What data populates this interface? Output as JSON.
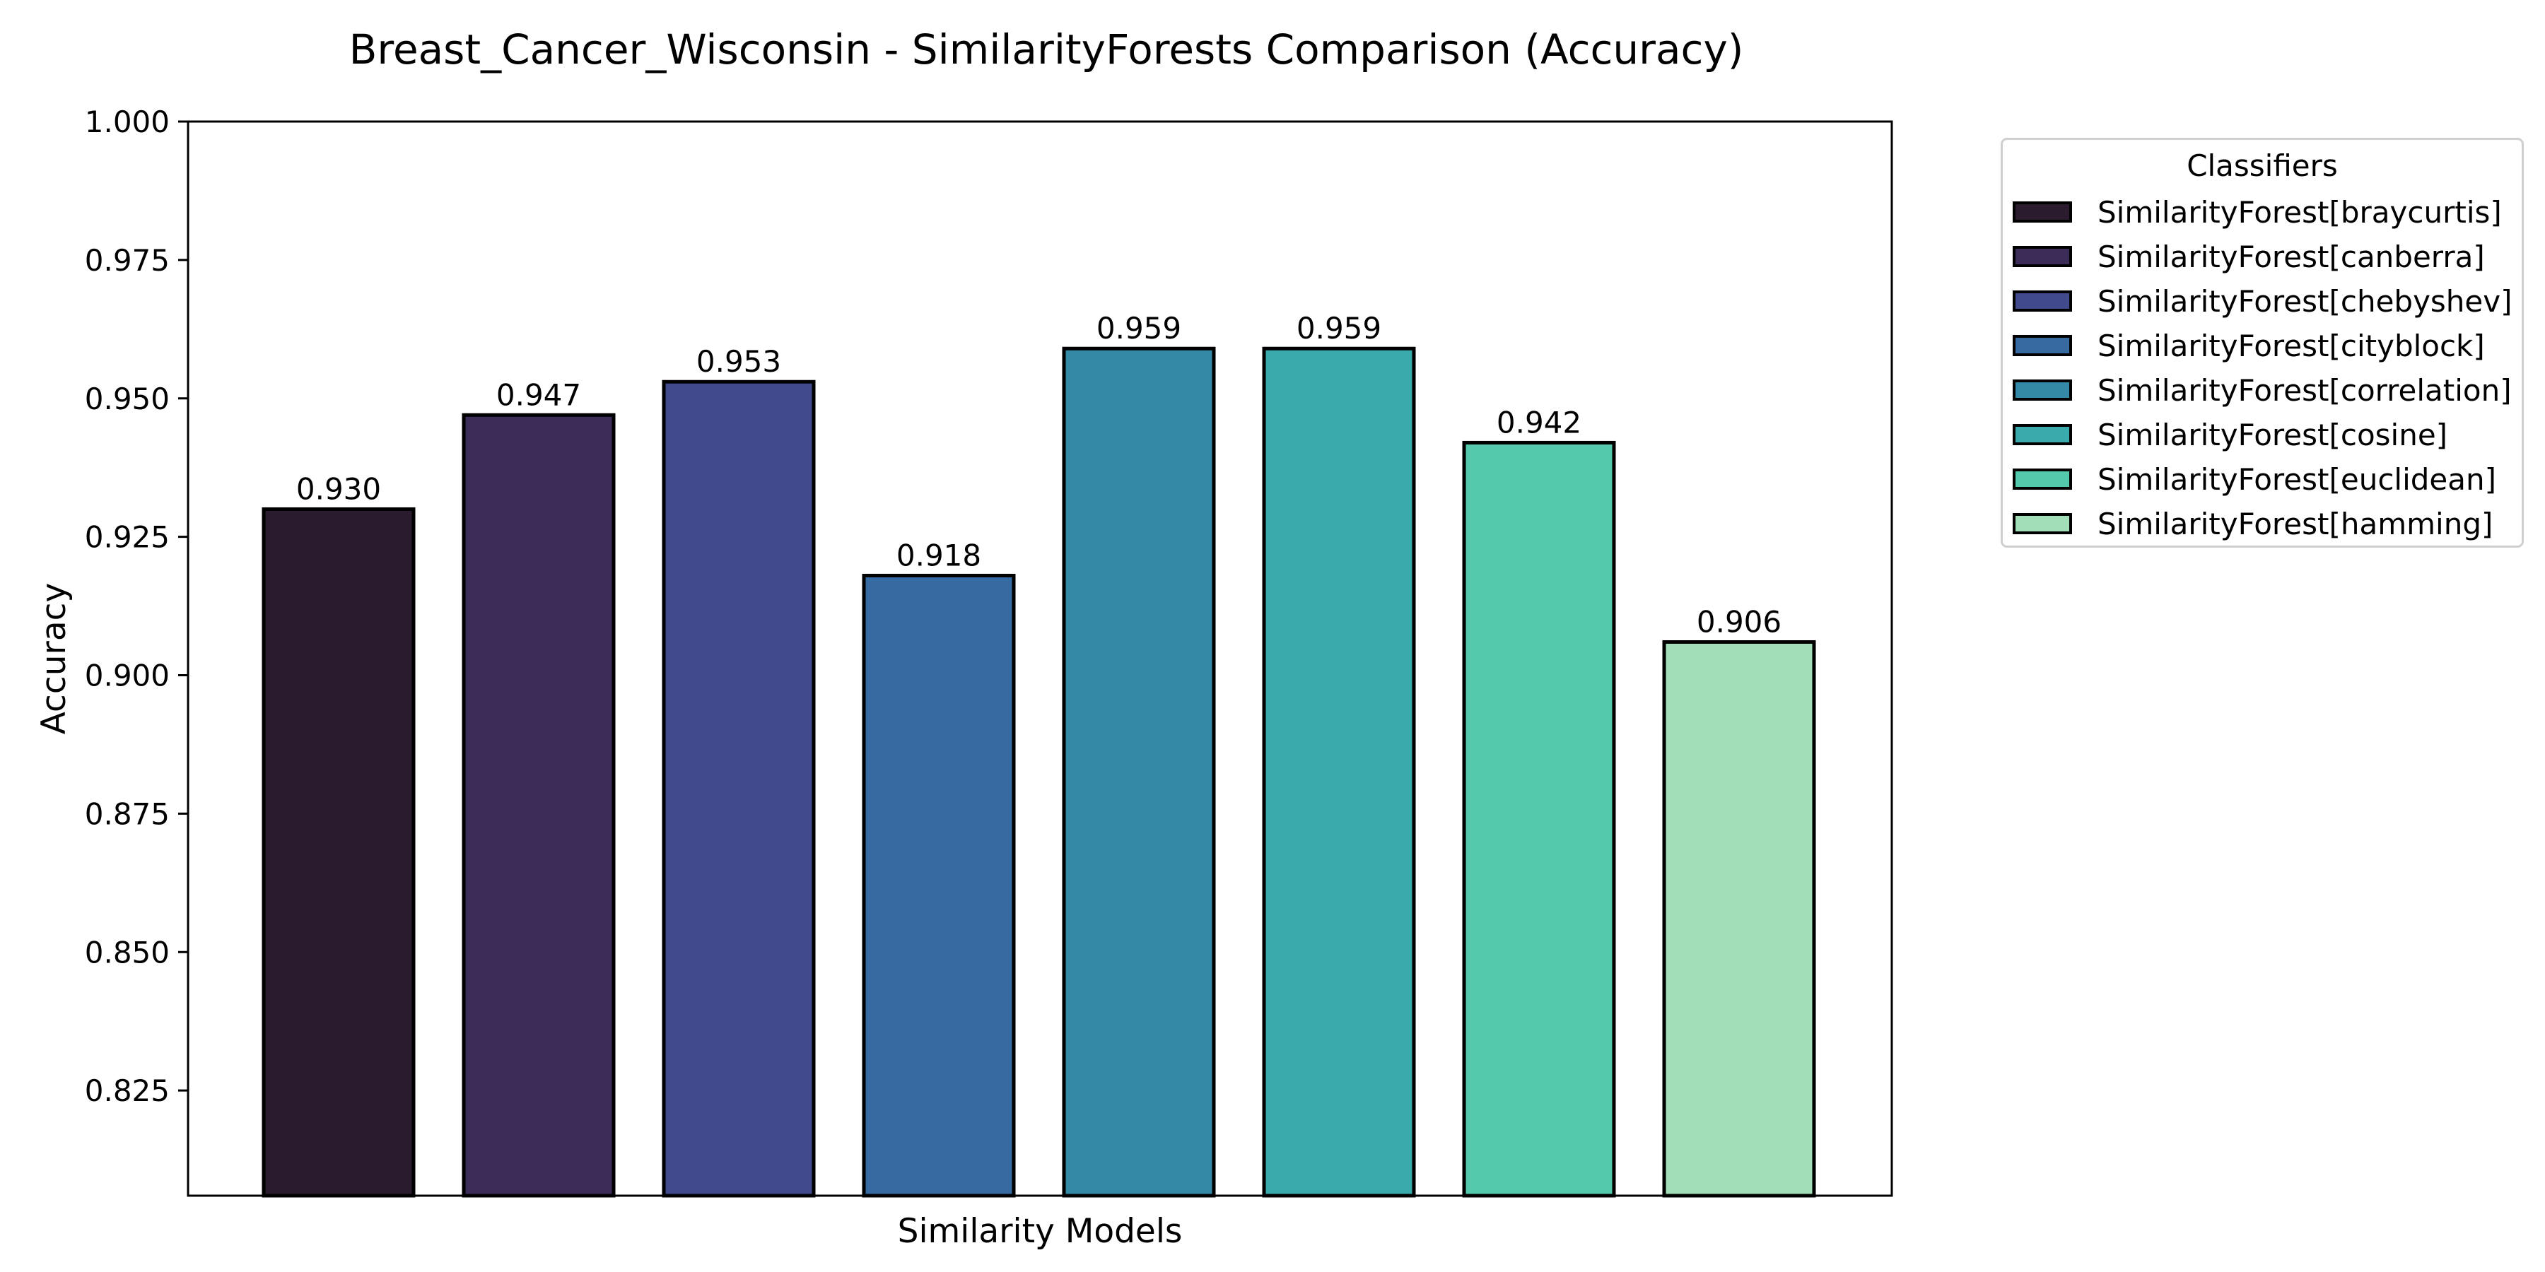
{
  "chart_data": {
    "type": "bar",
    "title": "Breast_Cancer_Wisconsin - SimilarityForests Comparison (Accuracy)",
    "xlabel": "Similarity Models",
    "ylabel": "Accuracy",
    "ylim": [
      0.806,
      1.0
    ],
    "yticks": [
      "0.825",
      "0.850",
      "0.875",
      "0.900",
      "0.925",
      "0.950",
      "0.975",
      "1.000"
    ],
    "grid": false,
    "legend": {
      "title": "Classifiers",
      "placement": "outside-right-top"
    },
    "categories": [
      "SimilarityForest[braycurtis]",
      "SimilarityForest[canberra]",
      "SimilarityForest[chebyshev]",
      "SimilarityForest[cityblock]",
      "SimilarityForest[correlation]",
      "SimilarityForest[cosine]",
      "SimilarityForest[euclidean]",
      "SimilarityForest[hamming]"
    ],
    "values": [
      0.93,
      0.947,
      0.953,
      0.918,
      0.959,
      0.959,
      0.942,
      0.906
    ],
    "value_labels": [
      "0.930",
      "0.947",
      "0.953",
      "0.918",
      "0.959",
      "0.959",
      "0.942",
      "0.906"
    ],
    "colors": [
      "#2a1b2e",
      "#3c2d58",
      "#414a8c",
      "#366aa0",
      "#348aa6",
      "#3aaaad",
      "#55c9ab",
      "#a2dfb8"
    ],
    "edge_color": "#000000"
  }
}
